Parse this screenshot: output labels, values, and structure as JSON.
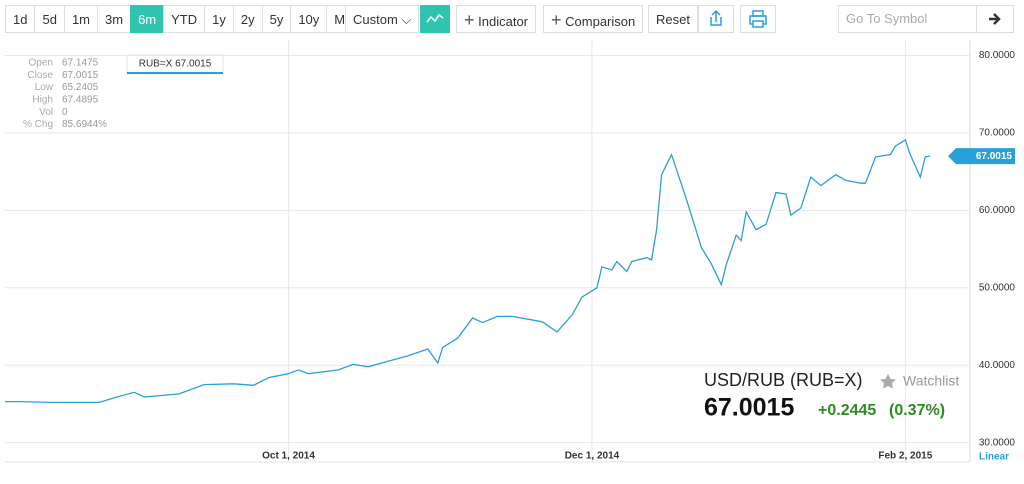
{
  "toolbar": {
    "ranges": [
      "1d",
      "5d",
      "1m",
      "3m",
      "6m",
      "YTD",
      "1y",
      "2y",
      "5y",
      "10y",
      "Max"
    ],
    "active_range": 4,
    "custom": "Custom",
    "indicator": "Indicator",
    "comparison": "Comparison",
    "reset": "Reset",
    "search_placeholder": "Go To Symbol"
  },
  "quote_panel": {
    "labels": [
      "Open",
      "Close",
      "Low",
      "High",
      "Vol",
      "% Chg"
    ],
    "values": [
      "67.1475",
      "67.0015",
      "65.2405",
      "67.4895",
      "0",
      "85.6944%"
    ]
  },
  "tooltip": "RUB=X 67.0015",
  "header": {
    "name": "USD/RUB (RUB=X)",
    "watchlist": "Watchlist",
    "change": "+0.2445",
    "change_pct": "(0.37%)"
  },
  "chart_data": {
    "type": "line",
    "color": "#2a9fd8",
    "x": [
      "2014-08-05",
      "2014-08-08",
      "2014-08-14",
      "2014-08-24",
      "2014-08-27",
      "2014-08-31",
      "2014-09-02",
      "2014-09-09",
      "2014-09-14",
      "2014-09-20",
      "2014-09-24",
      "2014-09-27",
      "2014-10-01",
      "2014-10-03",
      "2014-10-05",
      "2014-10-11",
      "2014-10-14",
      "2014-10-17",
      "2014-10-21",
      "2014-10-25",
      "2014-10-29",
      "2014-10-31",
      "2014-11-01",
      "2014-11-04",
      "2014-11-07",
      "2014-11-09",
      "2014-11-12",
      "2014-11-15",
      "2014-11-21",
      "2014-11-24",
      "2014-11-27",
      "2014-11-29",
      "2014-12-02",
      "2014-12-03",
      "2014-12-05",
      "2014-12-06",
      "2014-12-08",
      "2014-12-09",
      "2014-12-12",
      "2014-12-13",
      "2014-12-14",
      "2014-12-15",
      "2014-12-17",
      "2014-12-20",
      "2014-12-23",
      "2014-12-25",
      "2014-12-27",
      "2014-12-28",
      "2014-12-30",
      "2014-12-31",
      "2015-01-01",
      "2015-01-03",
      "2015-01-05",
      "2015-01-07",
      "2015-01-09",
      "2015-01-10",
      "2015-01-12",
      "2015-01-14",
      "2015-01-16",
      "2015-01-19",
      "2015-01-21",
      "2015-01-24",
      "2015-01-25",
      "2015-01-27",
      "2015-01-30",
      "2015-01-31",
      "2015-02-02",
      "2015-02-03",
      "2015-02-05",
      "2015-02-06",
      "2015-02-07"
    ],
    "values": [
      35.3,
      35.3,
      35.2,
      35.2,
      35.8,
      36.5,
      35.9,
      36.3,
      37.5,
      37.6,
      37.4,
      38.4,
      38.9,
      39.4,
      38.9,
      39.4,
      40.1,
      39.8,
      40.5,
      41.2,
      42.1,
      40.3,
      42.3,
      43.5,
      46.1,
      45.5,
      46.3,
      46.3,
      45.6,
      44.3,
      46.5,
      48.8,
      50.0,
      52.7,
      52.3,
      53.4,
      52.1,
      53.4,
      53.9,
      53.6,
      57.5,
      64.6,
      67.2,
      61.4,
      55.2,
      53.1,
      50.4,
      53.0,
      56.8,
      56.1,
      59.8,
      57.5,
      58.2,
      62.3,
      62.1,
      59.4,
      60.3,
      64.3,
      63.2,
      64.6,
      63.9,
      63.5,
      63.5,
      66.9,
      67.2,
      68.3,
      69.1,
      67.2,
      64.3,
      66.9,
      67.0015
    ],
    "xlim": [
      "2014-08-05",
      "2015-02-15"
    ],
    "xticks": [
      {
        "value": "2014-10-01",
        "label": "Oct 1, 2014"
      },
      {
        "value": "2014-12-01",
        "label": "Dec 1, 2014"
      },
      {
        "value": "2015-02-02",
        "label": "Feb 2, 2015"
      }
    ],
    "ylim": [
      27.5,
      82
    ],
    "yticks": [
      {
        "value": 30,
        "label": "30.0000"
      },
      {
        "value": 40,
        "label": "40.0000"
      },
      {
        "value": 50,
        "label": "50.0000"
      },
      {
        "value": 60,
        "label": "60.0000"
      },
      {
        "value": 70,
        "label": "70.0000"
      },
      {
        "value": 80,
        "label": "80.0000"
      }
    ],
    "grid": true,
    "scale": "Linear"
  }
}
